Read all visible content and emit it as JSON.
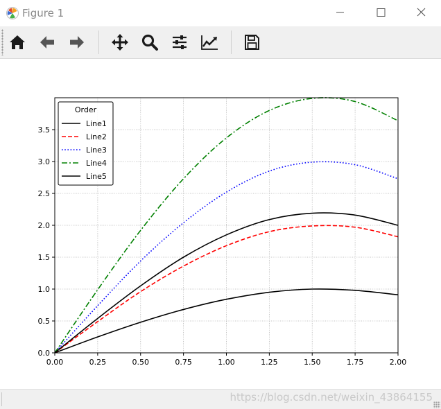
{
  "window": {
    "title": "Figure 1",
    "icon": "matplotlib-icon",
    "controls": [
      "minimize-icon",
      "maximize-icon",
      "close-icon"
    ]
  },
  "toolbar": {
    "buttons": [
      "home-icon",
      "back-arrow-icon",
      "forward-arrow-icon",
      "pan-move-icon",
      "zoom-magnifier-icon",
      "configure-subplots-icon",
      "edit-axis-icon",
      "save-icon"
    ]
  },
  "status": {
    "watermark": "https://blog.csdn.net/weixin_43864155"
  },
  "chart_data": {
    "type": "line",
    "title": "",
    "xlabel": "",
    "ylabel": "",
    "xlim": [
      0,
      2
    ],
    "ylim": [
      0,
      4
    ],
    "xticks": [
      "0.00",
      "0.25",
      "0.50",
      "0.75",
      "1.00",
      "1.25",
      "1.50",
      "1.75",
      "2.00"
    ],
    "yticks": [
      "0.0",
      "0.5",
      "1.0",
      "1.5",
      "2.0",
      "2.5",
      "3.0",
      "3.5"
    ],
    "grid": true,
    "grid_style": "dotted",
    "legend": {
      "title": "Order",
      "placement": "top-left"
    },
    "x": [
      0.0,
      0.25,
      0.5,
      0.75,
      1.0,
      1.25,
      1.5,
      1.75,
      2.0
    ],
    "series": [
      {
        "name": "Line1",
        "color": "#000000",
        "dash": "solid",
        "values": [
          0.0,
          0.25,
          0.48,
          0.68,
          0.84,
          0.95,
          1.0,
          0.98,
          0.91
        ]
      },
      {
        "name": "Line2",
        "color": "#ff0000",
        "dash": "dashed",
        "values": [
          0.0,
          0.49,
          0.96,
          1.36,
          1.68,
          1.9,
          1.99,
          1.97,
          1.82
        ]
      },
      {
        "name": "Line3",
        "color": "#0000ff",
        "dash": "dotted",
        "values": [
          0.0,
          0.74,
          1.44,
          2.04,
          2.52,
          2.85,
          2.99,
          2.95,
          2.73
        ]
      },
      {
        "name": "Line4",
        "color": "#008000",
        "dash": "dashdot",
        "values": [
          0.0,
          0.99,
          1.92,
          2.73,
          3.37,
          3.8,
          3.99,
          3.94,
          3.64
        ]
      },
      {
        "name": "Line5",
        "color": "#000000",
        "dash": "solid",
        "values": [
          0.0,
          0.54,
          1.05,
          1.5,
          1.85,
          2.09,
          2.19,
          2.16,
          2.0
        ]
      }
    ]
  }
}
